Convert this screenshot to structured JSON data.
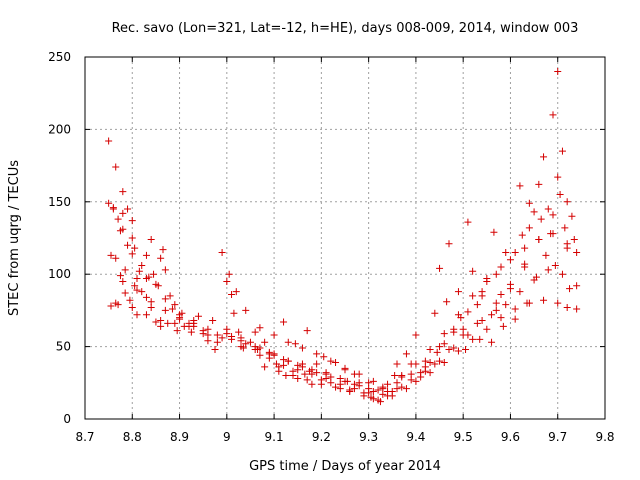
{
  "chart_data": {
    "type": "scatter",
    "title": "Rec. savo (Lon=321, Lat=-12, h=HE), days 008-009, 2014, window 003",
    "xlabel": "GPS time / Days of year 2014",
    "ylabel": "STEC from uqrg / TECUs",
    "xlim": [
      8.7,
      9.8
    ],
    "ylim": [
      0,
      250
    ],
    "xticks": [
      "8.7",
      "8.8",
      "8.9",
      "9",
      "9.1",
      "9.2",
      "9.3",
      "9.4",
      "9.5",
      "9.6",
      "9.7",
      "9.8"
    ],
    "yticks": [
      "0",
      "50",
      "100",
      "150",
      "200",
      "250"
    ],
    "grid": true,
    "marker": "+",
    "color": "#d40000",
    "series": [
      {
        "points": [
          [
            8.75,
            192
          ],
          [
            8.75,
            149
          ],
          [
            8.755,
            113
          ],
          [
            8.755,
            78
          ],
          [
            8.76,
            146
          ],
          [
            8.765,
            174
          ],
          [
            8.765,
            111
          ],
          [
            8.765,
            80
          ],
          [
            8.77,
            138
          ],
          [
            8.775,
            99
          ],
          [
            8.78,
            157
          ],
          [
            8.78,
            142
          ],
          [
            8.78,
            131
          ],
          [
            8.785,
            103
          ],
          [
            8.785,
            87
          ],
          [
            8.79,
            145
          ],
          [
            8.79,
            120
          ],
          [
            8.795,
            82
          ],
          [
            8.8,
            137
          ],
          [
            8.8,
            125
          ],
          [
            8.805,
            118
          ],
          [
            8.805,
            92
          ],
          [
            8.81,
            97
          ],
          [
            8.81,
            72
          ],
          [
            8.82,
            106
          ],
          [
            8.82,
            88
          ],
          [
            8.83,
            113
          ],
          [
            8.83,
            84
          ],
          [
            8.835,
            98
          ],
          [
            8.84,
            124
          ],
          [
            8.84,
            77
          ],
          [
            8.845,
            100
          ],
          [
            8.85,
            67
          ],
          [
            8.855,
            92
          ],
          [
            8.86,
            111
          ],
          [
            8.86,
            64
          ],
          [
            8.865,
            117
          ],
          [
            8.87,
            103
          ],
          [
            8.875,
            66
          ],
          [
            8.88,
            85
          ],
          [
            8.885,
            76
          ],
          [
            8.89,
            79
          ],
          [
            8.895,
            61
          ],
          [
            8.9,
            69
          ],
          [
            8.905,
            73
          ],
          [
            8.91,
            64
          ],
          [
            8.92,
            66
          ],
          [
            8.925,
            60
          ],
          [
            8.93,
            68
          ],
          [
            8.94,
            71
          ],
          [
            8.95,
            59
          ],
          [
            8.96,
            54
          ],
          [
            8.97,
            68
          ],
          [
            8.975,
            48
          ],
          [
            8.98,
            53
          ],
          [
            8.99,
            115
          ],
          [
            8.99,
            56
          ],
          [
            9.0,
            62
          ],
          [
            9.005,
            100
          ],
          [
            9.01,
            86
          ],
          [
            9.015,
            73
          ],
          [
            9.02,
            88
          ],
          [
            9.025,
            60
          ],
          [
            9.03,
            56
          ],
          [
            9.035,
            49
          ],
          [
            9.04,
            75
          ],
          [
            9.05,
            53
          ],
          [
            9.06,
            60
          ],
          [
            9.065,
            48
          ],
          [
            9.07,
            44
          ],
          [
            9.08,
            53
          ],
          [
            9.09,
            42
          ],
          [
            9.1,
            45
          ],
          [
            9.105,
            38
          ],
          [
            9.11,
            36
          ],
          [
            9.12,
            67
          ],
          [
            9.125,
            30
          ],
          [
            9.13,
            40
          ],
          [
            9.14,
            33
          ],
          [
            9.145,
            52
          ],
          [
            9.15,
            28
          ],
          [
            9.16,
            38
          ],
          [
            9.165,
            31
          ],
          [
            9.17,
            61
          ],
          [
            9.175,
            33
          ],
          [
            9.18,
            24
          ],
          [
            9.19,
            38
          ],
          [
            9.2,
            27
          ],
          [
            9.205,
            43
          ],
          [
            9.21,
            32
          ],
          [
            9.22,
            25
          ],
          [
            9.23,
            39
          ],
          [
            9.24,
            21
          ],
          [
            9.25,
            34
          ],
          [
            9.255,
            26
          ],
          [
            9.26,
            20
          ],
          [
            9.27,
            31
          ],
          [
            9.28,
            25
          ],
          [
            9.29,
            18
          ],
          [
            9.3,
            25
          ],
          [
            9.305,
            15
          ],
          [
            9.31,
            14
          ],
          [
            9.32,
            20
          ],
          [
            9.325,
            12
          ],
          [
            9.33,
            22
          ],
          [
            9.34,
            16
          ],
          [
            9.35,
            19
          ],
          [
            9.355,
            30
          ],
          [
            9.36,
            38
          ],
          [
            9.37,
            29
          ],
          [
            9.38,
            45
          ],
          [
            9.39,
            38
          ],
          [
            9.4,
            58
          ],
          [
            9.41,
            32
          ],
          [
            9.42,
            36
          ],
          [
            9.43,
            39
          ],
          [
            9.44,
            73
          ],
          [
            9.445,
            46
          ],
          [
            9.45,
            104
          ],
          [
            9.46,
            52
          ],
          [
            9.465,
            81
          ],
          [
            9.47,
            121
          ],
          [
            9.48,
            60
          ],
          [
            9.49,
            88
          ],
          [
            9.495,
            70
          ],
          [
            9.5,
            62
          ],
          [
            9.505,
            48
          ],
          [
            9.51,
            136
          ],
          [
            9.52,
            102
          ],
          [
            9.53,
            79
          ],
          [
            9.535,
            55
          ],
          [
            9.54,
            85
          ],
          [
            9.55,
            97
          ],
          [
            9.56,
            53
          ],
          [
            9.565,
            129
          ],
          [
            9.57,
            75
          ],
          [
            9.58,
            86
          ],
          [
            9.585,
            64
          ],
          [
            9.59,
            115
          ],
          [
            9.6,
            90
          ],
          [
            9.61,
            69
          ],
          [
            9.62,
            161
          ],
          [
            9.625,
            127
          ],
          [
            9.63,
            105
          ],
          [
            9.635,
            80
          ],
          [
            9.64,
            149
          ],
          [
            9.65,
            143
          ],
          [
            9.655,
            98
          ],
          [
            9.66,
            162
          ],
          [
            9.665,
            138
          ],
          [
            9.67,
            181
          ],
          [
            9.675,
            113
          ],
          [
            9.68,
            145
          ],
          [
            9.685,
            128
          ],
          [
            9.69,
            210
          ],
          [
            9.695,
            106
          ],
          [
            9.7,
            240
          ],
          [
            9.7,
            167
          ],
          [
            9.705,
            155
          ],
          [
            9.71,
            185
          ],
          [
            9.715,
            132
          ],
          [
            9.72,
            118
          ],
          [
            9.725,
            90
          ],
          [
            9.73,
            140
          ],
          [
            9.735,
            124
          ],
          [
            9.74,
            76
          ],
          [
            8.76,
            145
          ],
          [
            8.775,
            130
          ],
          [
            8.8,
            114
          ],
          [
            8.815,
            102
          ],
          [
            8.83,
            97
          ],
          [
            8.85,
            93
          ],
          [
            8.87,
            83
          ],
          [
            8.9,
            72
          ],
          [
            8.93,
            66
          ],
          [
            8.96,
            58
          ],
          [
            9.0,
            95
          ],
          [
            9.01,
            57
          ],
          [
            9.03,
            50
          ],
          [
            9.06,
            48
          ],
          [
            9.09,
            45
          ],
          [
            9.12,
            37
          ],
          [
            9.15,
            34
          ],
          [
            9.18,
            31
          ],
          [
            9.21,
            28
          ],
          [
            9.24,
            24
          ],
          [
            9.27,
            21
          ],
          [
            9.3,
            18
          ],
          [
            9.33,
            17
          ],
          [
            9.36,
            21
          ],
          [
            9.39,
            27
          ],
          [
            9.42,
            33
          ],
          [
            9.45,
            40
          ],
          [
            9.48,
            49
          ],
          [
            9.51,
            58
          ],
          [
            9.54,
            68
          ],
          [
            9.57,
            80
          ],
          [
            9.6,
            93
          ],
          [
            9.63,
            107
          ],
          [
            9.66,
            124
          ],
          [
            9.69,
            141
          ],
          [
            9.72,
            150
          ],
          [
            8.78,
            95
          ],
          [
            8.81,
            89
          ],
          [
            8.84,
            81
          ],
          [
            8.87,
            75
          ],
          [
            8.9,
            70
          ],
          [
            8.93,
            64
          ],
          [
            8.96,
            62
          ],
          [
            9.0,
            59
          ],
          [
            9.03,
            54
          ],
          [
            9.06,
            50
          ],
          [
            9.09,
            46
          ],
          [
            9.12,
            41
          ],
          [
            9.15,
            37
          ],
          [
            9.18,
            34
          ],
          [
            9.21,
            31
          ],
          [
            9.24,
            28
          ],
          [
            9.27,
            24
          ],
          [
            9.3,
            21
          ],
          [
            9.33,
            21
          ],
          [
            9.36,
            25
          ],
          [
            9.39,
            31
          ],
          [
            9.42,
            40
          ],
          [
            9.45,
            50
          ],
          [
            9.48,
            62
          ],
          [
            9.51,
            74
          ],
          [
            9.54,
            88
          ],
          [
            9.57,
            100
          ],
          [
            9.6,
            110
          ],
          [
            9.63,
            118
          ],
          [
            9.66,
            124
          ],
          [
            9.69,
            128
          ],
          [
            9.72,
            121
          ],
          [
            9.74,
            115
          ],
          [
            8.77,
            79
          ],
          [
            8.8,
            77
          ],
          [
            8.83,
            72
          ],
          [
            8.86,
            68
          ],
          [
            8.89,
            66
          ],
          [
            8.92,
            64
          ],
          [
            8.95,
            61
          ],
          [
            8.98,
            58
          ],
          [
            9.01,
            55
          ],
          [
            9.04,
            52
          ],
          [
            9.07,
            49
          ],
          [
            9.1,
            44
          ],
          [
            9.13,
            40
          ],
          [
            9.16,
            36
          ],
          [
            9.19,
            32
          ],
          [
            9.22,
            29
          ],
          [
            9.25,
            26
          ],
          [
            9.28,
            23
          ],
          [
            9.31,
            19
          ],
          [
            9.34,
            19
          ],
          [
            9.37,
            22
          ],
          [
            9.4,
            26
          ],
          [
            9.43,
            32
          ],
          [
            9.46,
            39
          ],
          [
            9.49,
            47
          ],
          [
            9.52,
            55
          ],
          [
            9.55,
            62
          ],
          [
            9.58,
            70
          ],
          [
            9.61,
            76
          ],
          [
            9.64,
            80
          ],
          [
            9.67,
            82
          ],
          [
            9.7,
            80
          ],
          [
            9.72,
            77
          ],
          [
            9.07,
            63
          ],
          [
            9.1,
            58
          ],
          [
            9.13,
            53
          ],
          [
            9.16,
            49
          ],
          [
            9.19,
            45
          ],
          [
            9.22,
            40
          ],
          [
            9.25,
            35
          ],
          [
            9.28,
            31
          ],
          [
            9.31,
            26
          ],
          [
            9.34,
            24
          ],
          [
            9.37,
            30
          ],
          [
            9.4,
            38
          ],
          [
            9.43,
            48
          ],
          [
            9.46,
            59
          ],
          [
            9.49,
            72
          ],
          [
            9.52,
            85
          ],
          [
            9.55,
            95
          ],
          [
            9.58,
            105
          ],
          [
            9.61,
            115
          ],
          [
            9.64,
            132
          ],
          [
            9.08,
            36
          ],
          [
            9.11,
            33
          ],
          [
            9.14,
            30
          ],
          [
            9.17,
            27
          ],
          [
            9.2,
            24
          ],
          [
            9.23,
            22
          ],
          [
            9.26,
            19
          ],
          [
            9.29,
            16
          ],
          [
            9.32,
            13
          ],
          [
            9.35,
            16
          ],
          [
            9.38,
            21
          ],
          [
            9.41,
            29
          ],
          [
            9.44,
            38
          ],
          [
            9.47,
            48
          ],
          [
            9.5,
            58
          ],
          [
            9.53,
            66
          ],
          [
            9.56,
            72
          ],
          [
            9.59,
            79
          ],
          [
            9.62,
            88
          ],
          [
            9.65,
            96
          ],
          [
            9.68,
            103
          ],
          [
            9.71,
            100
          ],
          [
            9.74,
            92
          ]
        ]
      }
    ]
  }
}
